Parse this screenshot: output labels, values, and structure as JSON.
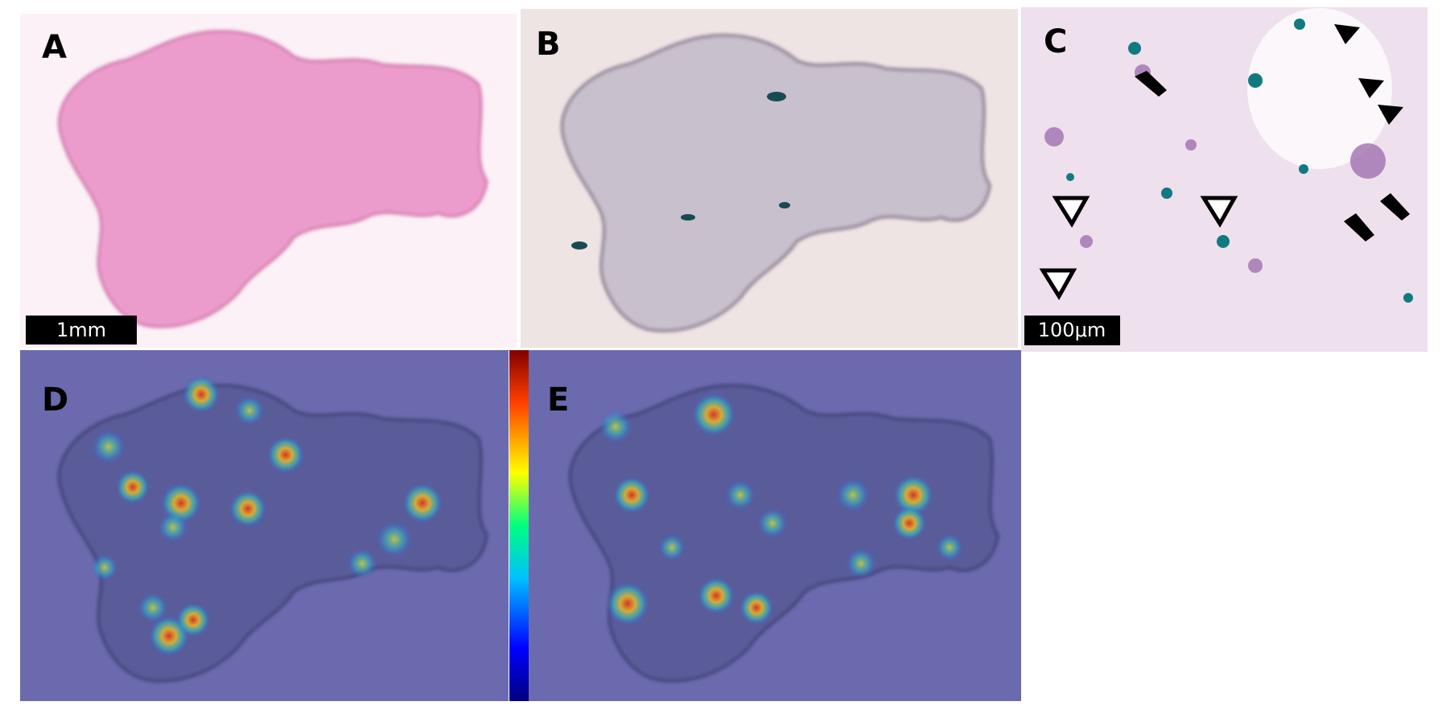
{
  "panels": [
    {
      "label": "A",
      "scale_bar": "1mm"
    },
    {
      "label": "B"
    },
    {
      "label": "C",
      "scale_bar": "100μm"
    },
    {
      "label": "D"
    },
    {
      "label": "E"
    }
  ]
}
